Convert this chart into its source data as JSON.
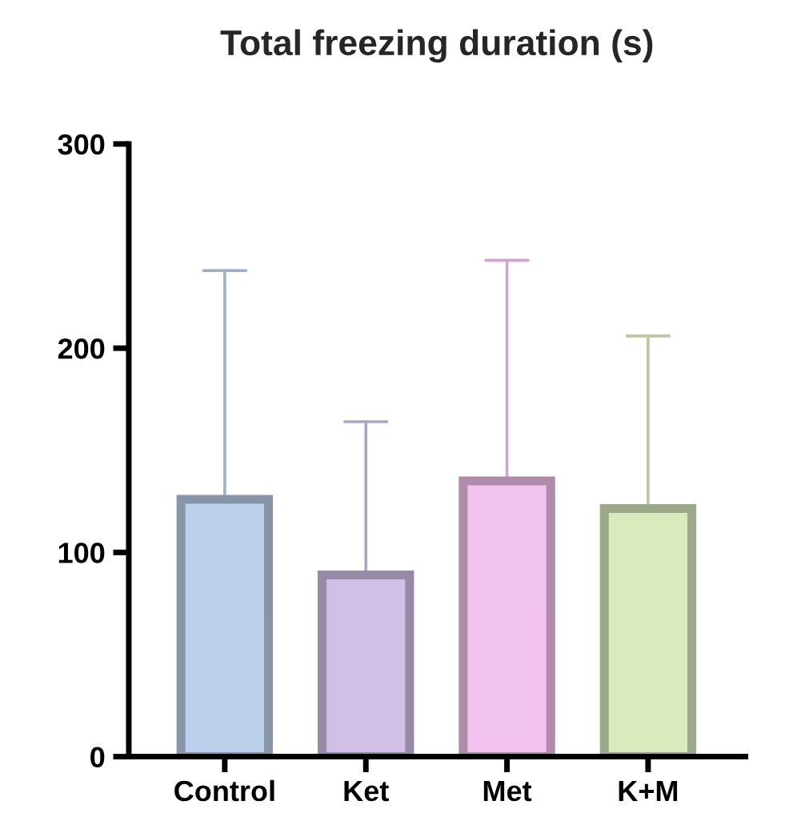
{
  "chart_data": {
    "type": "bar",
    "title": "Total freezing duration (s)",
    "categories": [
      "Control",
      "Ket",
      "Met",
      "K+M"
    ],
    "values": [
      126,
      89,
      135,
      121.5
    ],
    "errors": [
      [
        126,
        238
      ],
      [
        89,
        164
      ],
      [
        135,
        243
      ],
      [
        121.5,
        206
      ]
    ],
    "colors": [
      "#bccfeb",
      "#d0c0e6",
      "#f3c3ef",
      "#d9ebbd"
    ],
    "ylim": [
      0,
      300
    ],
    "yticks": [
      0,
      100,
      200,
      300
    ],
    "grid": false,
    "legend": false
  }
}
